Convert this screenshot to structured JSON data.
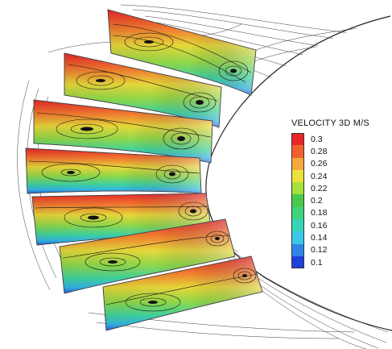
{
  "legend": {
    "title": "VELOCITY 3D M/S",
    "entries": [
      {
        "label": "0.3",
        "color": "#e8262a"
      },
      {
        "label": "0.28",
        "color": "#f0622c"
      },
      {
        "label": "0.26",
        "color": "#f7a83a"
      },
      {
        "label": "0.24",
        "color": "#ece13a"
      },
      {
        "label": "0.22",
        "color": "#a7df3c"
      },
      {
        "label": "0.2",
        "color": "#49c94a"
      },
      {
        "label": "0.18",
        "color": "#3fd37e"
      },
      {
        "label": "0.16",
        "color": "#36d6b4"
      },
      {
        "label": "0.14",
        "color": "#3cc7e8"
      },
      {
        "label": "0.12",
        "color": "#2f86ea"
      },
      {
        "label": "0.1",
        "color": "#1f3fd9"
      }
    ]
  }
}
